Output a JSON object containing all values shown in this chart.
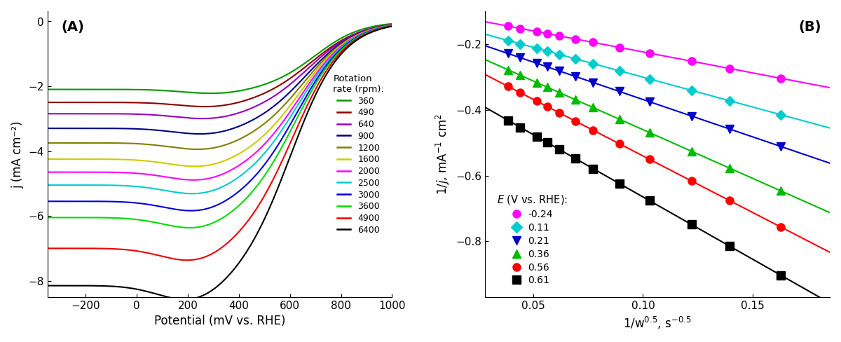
{
  "panel_A": {
    "title": "(A)",
    "xlabel": "Potential (mV vs. RHE)",
    "ylabel": "j (mA cm⁻²)",
    "xlim": [
      -350,
      1000
    ],
    "ylim": [
      -8.5,
      0.3
    ],
    "xticks": [
      -200,
      0,
      200,
      400,
      600,
      800,
      1000
    ],
    "yticks": [
      0,
      -2,
      -4,
      -6,
      -8
    ],
    "rotation_rates": [
      360,
      490,
      640,
      900,
      1200,
      1600,
      2000,
      2500,
      3000,
      3600,
      4900,
      6400
    ],
    "colors_A": [
      "#009900",
      "#8B0000",
      "#9900BB",
      "#00008B",
      "#808000",
      "#CCCC00",
      "#FF00FF",
      "#00CCCC",
      "#0000DD",
      "#00DD00",
      "#EE0000",
      "#000000"
    ],
    "limiting_currents": [
      -2.1,
      -2.5,
      -2.85,
      -3.3,
      -3.75,
      -4.25,
      -4.65,
      -5.05,
      -5.55,
      -6.05,
      -7.0,
      -8.15
    ],
    "half_wave_potentials": [
      700,
      685,
      675,
      665,
      655,
      645,
      640,
      635,
      630,
      625,
      615,
      605
    ],
    "steepness": [
      0.011,
      0.01,
      0.01,
      0.01,
      0.01,
      0.01,
      0.01,
      0.01,
      0.01,
      0.01,
      0.01,
      0.01
    ]
  },
  "panel_B": {
    "title": "(B)",
    "xlim": [
      0.028,
      0.185
    ],
    "ylim": [
      -0.97,
      -0.1
    ],
    "xticks": [
      0.05,
      0.1,
      0.15
    ],
    "yticks": [
      -0.2,
      -0.4,
      -0.6,
      -0.8
    ],
    "pot_labels": [
      "-0.24",
      "0.11",
      "0.21",
      "0.36",
      "0.56",
      "0.61"
    ],
    "colors_B": [
      "#FF00FF",
      "#00CCCC",
      "#0000CC",
      "#00BB00",
      "#FF0000",
      "#000000"
    ],
    "markers": [
      "o",
      "D",
      "v",
      "^",
      "o",
      "s"
    ],
    "intercepts": [
      -0.095,
      -0.118,
      -0.14,
      -0.163,
      -0.195,
      -0.285
    ],
    "slopes": [
      -1.28,
      -1.82,
      -2.28,
      -2.97,
      -3.45,
      -3.8
    ]
  }
}
